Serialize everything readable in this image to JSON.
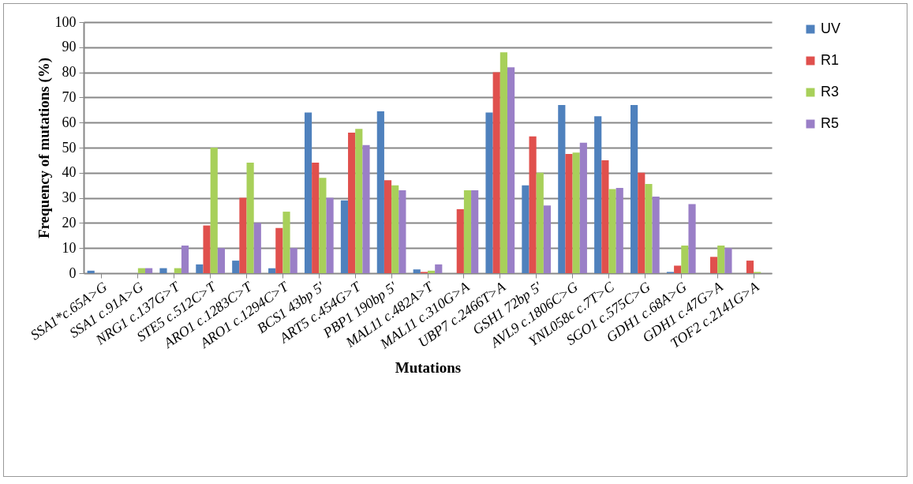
{
  "chart_data": {
    "type": "bar",
    "xlabel": "Mutations",
    "ylabel": "Frequency of mutations (%)",
    "categories": [
      "SSA1*c.65A>G",
      "SSA1 c.91A>G",
      "NRG1 c.137G>T",
      "STE5 c.512C>T",
      "ARO1 c.1283C>T",
      "ARO1 c.1294C>T",
      "BCS1 43bp 5'",
      "ART5 c.454G>T",
      "PBP1 190bp 5'",
      "MAL11 c.482A>T",
      "MAL11 c.310G>A",
      "UBP7 c.2466T>A",
      "GSH1 72bp 5'",
      "AVL9 c.1806C>G",
      "YNL058c c.7T>C",
      "SGO1 c.575C>G",
      "GDH1 c.68A>G",
      "GDH1 c.47G>A",
      "TOF2 c.2141G>A"
    ],
    "series": [
      {
        "name": "UV",
        "color": "#4f81bd",
        "values": [
          1,
          null,
          2,
          3.5,
          5,
          2,
          64,
          29,
          64.5,
          1.5,
          null,
          64,
          35,
          67,
          62.5,
          67,
          0.5,
          null,
          null
        ]
      },
      {
        "name": "R1",
        "color": "#e0504d",
        "values": [
          null,
          null,
          null,
          19,
          30,
          18,
          44,
          56,
          37,
          0.5,
          25.5,
          80,
          54.5,
          47.5,
          45,
          40,
          3,
          6.5,
          5
        ]
      },
      {
        "name": "R3",
        "color": "#a8d05a",
        "values": [
          null,
          2,
          2,
          50,
          44,
          24.5,
          38,
          57.5,
          35,
          1,
          33,
          88,
          40,
          48,
          33.5,
          35.5,
          11,
          11,
          0.5
        ]
      },
      {
        "name": "R5",
        "color": "#9a7fc7",
        "values": [
          null,
          2,
          11,
          10,
          20,
          10,
          30,
          51,
          33,
          3.5,
          33,
          82,
          27,
          52,
          34,
          30.5,
          27.5,
          10,
          null
        ]
      }
    ],
    "ylim": [
      0,
      100
    ],
    "yticks": [
      0,
      10,
      20,
      30,
      40,
      50,
      60,
      70,
      80,
      90,
      100
    ],
    "grid": "y",
    "legend": "right"
  }
}
